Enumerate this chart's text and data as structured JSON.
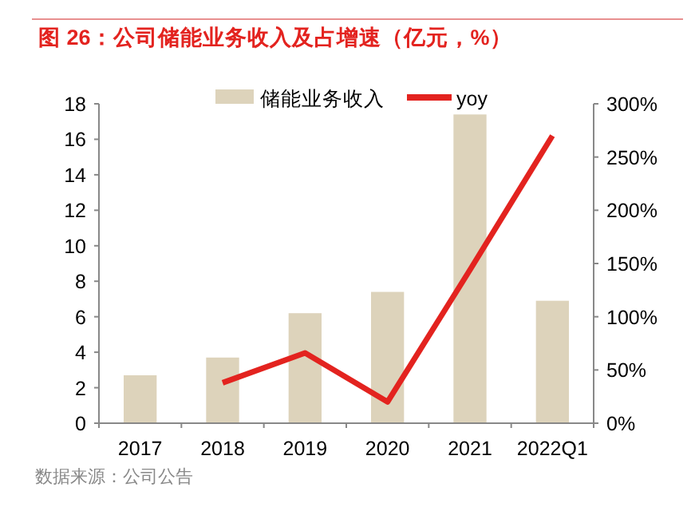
{
  "chart_data": {
    "type": "bar",
    "title": "图 26：公司储能业务收入及占增速（亿元，%）",
    "categories": [
      "2017",
      "2018",
      "2019",
      "2020",
      "2021",
      "2022Q1"
    ],
    "series": [
      {
        "name": "储能业务收入",
        "type": "bar",
        "color": "#ddd3bb",
        "values": [
          2.7,
          3.7,
          6.2,
          7.4,
          17.4,
          6.9
        ]
      },
      {
        "name": "yoy",
        "type": "line",
        "color": "#e3231f",
        "axis": "y2",
        "values": [
          null,
          38,
          66,
          20,
          144,
          270
        ]
      }
    ],
    "ylim": [
      0,
      18
    ],
    "yticks": [
      0,
      2,
      4,
      6,
      8,
      10,
      12,
      14,
      16,
      18
    ],
    "y2lim": [
      0,
      300
    ],
    "y2ticks": [
      {
        "value": 0,
        "label": "0%"
      },
      {
        "value": 50,
        "label": "50%"
      },
      {
        "value": 100,
        "label": "100%"
      },
      {
        "value": 150,
        "label": "150%"
      },
      {
        "value": 200,
        "label": "200%"
      },
      {
        "value": 250,
        "label": "250%"
      },
      {
        "value": 300,
        "label": "300%"
      }
    ],
    "legend": "top",
    "grid": false,
    "marker": "none",
    "line_style": "solid",
    "annotations": [
      "数据来源：公司公告"
    ]
  }
}
